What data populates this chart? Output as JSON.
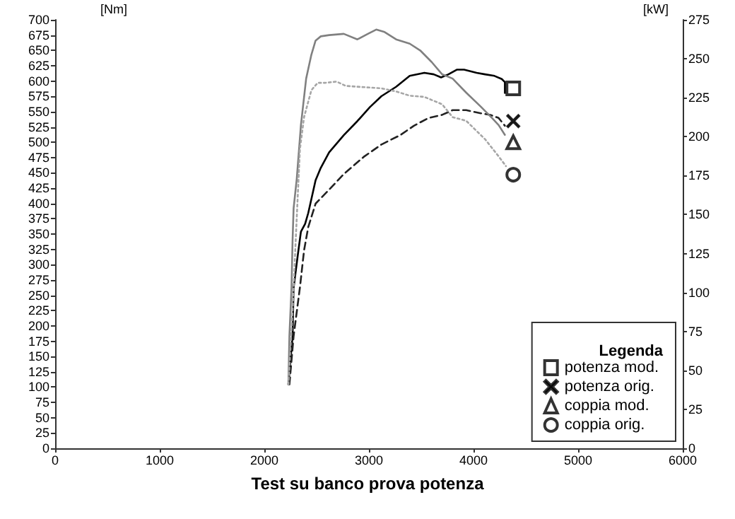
{
  "chart_data": {
    "type": "line",
    "title": "Test su banco prova potenza",
    "ylabel": "[Nm]",
    "y2label": "[kW]",
    "legend_title": "Legenda",
    "legend": "bottom right",
    "grid": false,
    "xlim": [
      0,
      6000
    ],
    "xticks": [
      0,
      1000,
      2000,
      3000,
      4000,
      5000,
      6000
    ],
    "ylim": [
      0,
      700
    ],
    "yticks": [
      0,
      25,
      50,
      75,
      100,
      125,
      150,
      175,
      200,
      225,
      250,
      275,
      300,
      325,
      350,
      375,
      400,
      425,
      450,
      475,
      500,
      525,
      550,
      575,
      600,
      625,
      650,
      675,
      700
    ],
    "y2lim": [
      0,
      275
    ],
    "y2ticks": [
      0,
      25,
      50,
      75,
      100,
      125,
      150,
      175,
      200,
      225,
      250,
      275
    ],
    "series": [
      {
        "color": "#000000",
        "axis": "y2",
        "line_style": "solid",
        "x": [
          2230,
          2270,
          2280,
          2320,
          2350,
          2390,
          2420,
          2450,
          2490,
          2540,
          2620,
          2760,
          2890,
          3010,
          3120,
          3260,
          3390,
          3530,
          3620,
          3690,
          3760,
          3840,
          3910,
          4030,
          4110,
          4200,
          4270,
          4300,
          4300
        ],
        "values": [
          41,
          72,
          103,
          124,
          139,
          144,
          151,
          160,
          172,
          180,
          190,
          201,
          210,
          219,
          226,
          232,
          239,
          241,
          240,
          238,
          240,
          243,
          243,
          241,
          240,
          239,
          237,
          235,
          228
        ]
      },
      {
        "color": "#222222",
        "axis": "y2",
        "line_style": "dashed",
        "x": [
          2240,
          2280,
          2340,
          2380,
          2420,
          2490,
          2620,
          2760,
          2950,
          3120,
          3300,
          3430,
          3570,
          3700,
          3800,
          3930,
          4070,
          4160,
          4240,
          4300
        ],
        "values": [
          41,
          72,
          103,
          127,
          142,
          157,
          166,
          176,
          187,
          195,
          201,
          207,
          212,
          214,
          217,
          217,
          215,
          214,
          212,
          207
        ]
      },
      {
        "color": "#808080",
        "axis": "y",
        "line_style": "solid",
        "x": [
          2230,
          2240,
          2260,
          2270,
          2280,
          2310,
          2350,
          2400,
          2450,
          2490,
          2540,
          2620,
          2760,
          2890,
          2990,
          3070,
          3150,
          3260,
          3390,
          3490,
          3600,
          3700,
          3800,
          3930,
          4070,
          4180,
          4240,
          4300
        ],
        "values": [
          104,
          184,
          263,
          339,
          392,
          440,
          528,
          604,
          643,
          666,
          673,
          675,
          677,
          668,
          677,
          684,
          680,
          668,
          661,
          650,
          631,
          611,
          604,
          581,
          558,
          539,
          528,
          512
        ]
      },
      {
        "color": "#a6a6a6",
        "axis": "y",
        "line_style": "dotted",
        "x": [
          2230,
          2270,
          2300,
          2340,
          2380,
          2450,
          2510,
          2580,
          2690,
          2780,
          2950,
          3120,
          3260,
          3390,
          3530,
          3700,
          3800,
          3930,
          4110,
          4240,
          4310
        ],
        "values": [
          104,
          224,
          339,
          488,
          541,
          585,
          597,
          597,
          599,
          592,
          590,
          588,
          583,
          576,
          574,
          562,
          541,
          535,
          505,
          477,
          461
        ]
      },
      {
        "name": "potenza mod.",
        "type": "scatter",
        "color": "#000000",
        "axis": "y2",
        "marker": "square",
        "x": [
          4380
        ],
        "values": [
          231
        ]
      },
      {
        "name": "potenza orig.",
        "type": "scatter",
        "color": "#000000",
        "axis": "y2",
        "marker": "cross",
        "x": [
          4380
        ],
        "values": [
          210
        ]
      },
      {
        "name": "coppia mod.",
        "type": "scatter",
        "color": "#000000",
        "axis": "y",
        "marker": "triangle",
        "x": [
          4380
        ],
        "values": [
          500
        ]
      },
      {
        "name": "coppia orig.",
        "type": "scatter",
        "color": "#000000",
        "axis": "y",
        "marker": "circle",
        "x": [
          4380
        ],
        "values": [
          447
        ]
      }
    ]
  }
}
